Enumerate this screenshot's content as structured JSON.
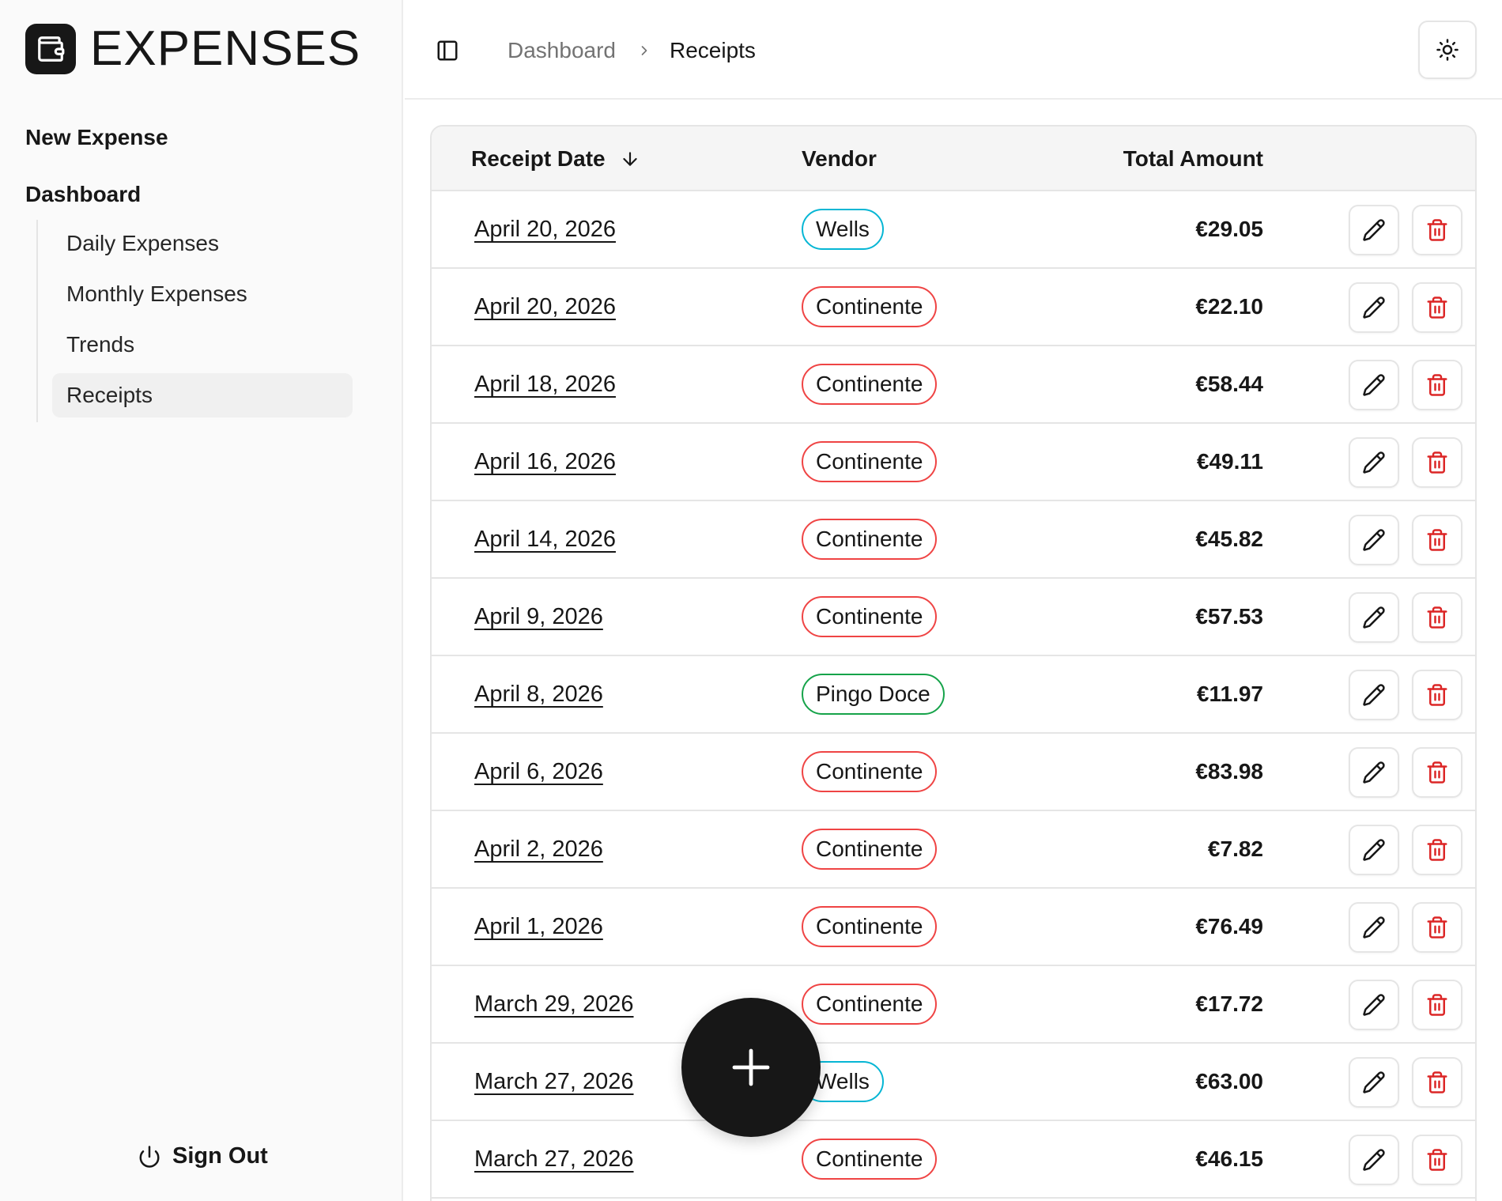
{
  "app": {
    "logo_text": "EXPENSES"
  },
  "sidebar": {
    "new_expense": "New Expense",
    "dashboard": "Dashboard",
    "items": [
      {
        "label": "Daily Expenses",
        "active": false
      },
      {
        "label": "Monthly Expenses",
        "active": false
      },
      {
        "label": "Trends",
        "active": false
      },
      {
        "label": "Receipts",
        "active": true
      }
    ],
    "sign_out": "Sign Out"
  },
  "header": {
    "breadcrumb": {
      "parent": "Dashboard",
      "current": "Receipts"
    }
  },
  "table": {
    "columns": {
      "date": "Receipt Date",
      "vendor": "Vendor",
      "amount": "Total Amount"
    },
    "sort": {
      "column": "date",
      "direction": "descending"
    },
    "rows": [
      {
        "date": "April 20, 2026",
        "vendor": "Wells",
        "amount": "€29.05"
      },
      {
        "date": "April 20, 2026",
        "vendor": "Continente",
        "amount": "€22.10"
      },
      {
        "date": "April 18, 2026",
        "vendor": "Continente",
        "amount": "€58.44"
      },
      {
        "date": "April 16, 2026",
        "vendor": "Continente",
        "amount": "€49.11"
      },
      {
        "date": "April 14, 2026",
        "vendor": "Continente",
        "amount": "€45.82"
      },
      {
        "date": "April 9, 2026",
        "vendor": "Continente",
        "amount": "€57.53"
      },
      {
        "date": "April 8, 2026",
        "vendor": "Pingo Doce",
        "amount": "€11.97"
      },
      {
        "date": "April 6, 2026",
        "vendor": "Continente",
        "amount": "€83.98"
      },
      {
        "date": "April 2, 2026",
        "vendor": "Continente",
        "amount": "€7.82"
      },
      {
        "date": "April 1, 2026",
        "vendor": "Continente",
        "amount": "€76.49"
      },
      {
        "date": "March 29, 2026",
        "vendor": "Continente",
        "amount": "€17.72"
      },
      {
        "date": "March 27, 2026",
        "vendor": "Wells",
        "amount": "€63.00"
      },
      {
        "date": "March 27, 2026",
        "vendor": "Continente",
        "amount": "€46.15"
      }
    ]
  },
  "vendor_colors": {
    "Wells": "#06b6d4",
    "Continente": "#ef4444",
    "Pingo Doce": "#16a34a"
  },
  "colors": {
    "delete": "#dc2626",
    "primary": "#171717"
  },
  "icons": {
    "logo": "wallet-icon",
    "sidebar_toggle": "panel-left-icon",
    "breadcrumb_separator": "chevron-right-icon",
    "theme": "sun-icon",
    "sort": "arrow-down-icon",
    "edit": "pencil-icon",
    "delete": "trash-icon",
    "sign_out": "power-icon",
    "fab": "plus-icon"
  }
}
